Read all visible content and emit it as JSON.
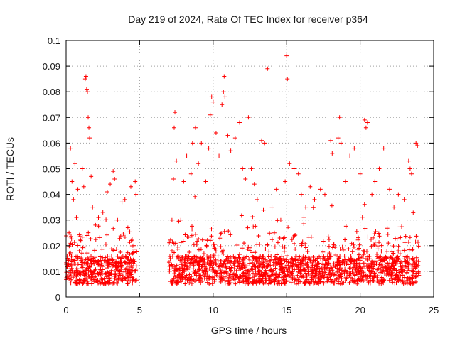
{
  "chart_data": {
    "type": "scatter",
    "title": "Day 219 of 2024, Rate Of TEC Index for receiver p364",
    "xlabel": "GPS time / hours",
    "ylabel": "ROTI / TECUs",
    "xlim": [
      0,
      25
    ],
    "ylim": [
      0,
      0.1
    ],
    "xticks": [
      0,
      5,
      10,
      15,
      20,
      25
    ],
    "yticks": [
      0,
      0.01,
      0.02,
      0.03,
      0.04,
      0.05,
      0.06,
      0.07,
      0.08,
      0.09,
      0.1
    ],
    "xtick_labels": [
      "0",
      "5",
      "10",
      "15",
      "20",
      "25"
    ],
    "ytick_labels": [
      "0",
      "0.01",
      "0.02",
      "0.03",
      "0.04",
      "0.05",
      "0.06",
      "0.07",
      "0.08",
      "0.09",
      "0.1"
    ],
    "grid": true,
    "marker": "+",
    "series_color": "#ff0000",
    "series": [
      {
        "name": "ROTI",
        "points": [
          [
            0.1,
            0.012
          ],
          [
            0.2,
            0.025
          ],
          [
            0.3,
            0.058
          ],
          [
            0.4,
            0.045
          ],
          [
            0.5,
            0.038
          ],
          [
            0.6,
            0.052
          ],
          [
            0.7,
            0.031
          ],
          [
            0.8,
            0.042
          ],
          [
            0.9,
            0.018
          ],
          [
            1.0,
            0.022
          ],
          [
            1.1,
            0.05
          ],
          [
            1.2,
            0.043
          ],
          [
            1.3,
            0.085
          ],
          [
            1.35,
            0.086
          ],
          [
            1.4,
            0.081
          ],
          [
            1.45,
            0.08
          ],
          [
            1.5,
            0.07
          ],
          [
            1.55,
            0.066
          ],
          [
            1.6,
            0.062
          ],
          [
            1.7,
            0.047
          ],
          [
            1.8,
            0.035
          ],
          [
            2.0,
            0.028
          ],
          [
            2.2,
            0.031
          ],
          [
            2.5,
            0.033
          ],
          [
            2.8,
            0.041
          ],
          [
            3.0,
            0.044
          ],
          [
            3.2,
            0.049
          ],
          [
            3.3,
            0.046
          ],
          [
            3.5,
            0.03
          ],
          [
            3.8,
            0.037
          ],
          [
            4.0,
            0.038
          ],
          [
            4.2,
            0.027
          ],
          [
            4.4,
            0.043
          ],
          [
            4.6,
            0.02
          ],
          [
            4.7,
            0.045
          ],
          [
            4.75,
            0.04
          ],
          [
            7.2,
            0.03
          ],
          [
            7.3,
            0.046
          ],
          [
            7.35,
            0.066
          ],
          [
            7.4,
            0.072
          ],
          [
            7.5,
            0.053
          ],
          [
            7.8,
            0.03
          ],
          [
            8.0,
            0.045
          ],
          [
            8.2,
            0.055
          ],
          [
            8.5,
            0.048
          ],
          [
            8.6,
            0.06
          ],
          [
            8.8,
            0.066
          ],
          [
            9.0,
            0.052
          ],
          [
            9.2,
            0.06
          ],
          [
            9.5,
            0.045
          ],
          [
            9.7,
            0.058
          ],
          [
            9.8,
            0.071
          ],
          [
            9.9,
            0.078
          ],
          [
            10.0,
            0.076
          ],
          [
            10.2,
            0.064
          ],
          [
            10.4,
            0.055
          ],
          [
            10.6,
            0.075
          ],
          [
            10.7,
            0.08
          ],
          [
            10.75,
            0.086
          ],
          [
            10.8,
            0.078
          ],
          [
            11.0,
            0.063
          ],
          [
            11.2,
            0.057
          ],
          [
            11.5,
            0.062
          ],
          [
            11.8,
            0.068
          ],
          [
            12.0,
            0.05
          ],
          [
            12.2,
            0.046
          ],
          [
            12.4,
            0.07
          ],
          [
            12.6,
            0.05
          ],
          [
            12.8,
            0.044
          ],
          [
            13.0,
            0.038
          ],
          [
            13.3,
            0.061
          ],
          [
            13.5,
            0.06
          ],
          [
            13.7,
            0.089
          ],
          [
            14.0,
            0.035
          ],
          [
            14.3,
            0.042
          ],
          [
            14.6,
            0.03
          ],
          [
            14.9,
            0.045
          ],
          [
            15.0,
            0.094
          ],
          [
            15.05,
            0.085
          ],
          [
            15.2,
            0.052
          ],
          [
            15.5,
            0.05
          ],
          [
            15.8,
            0.048
          ],
          [
            16.0,
            0.04
          ],
          [
            16.3,
            0.035
          ],
          [
            16.6,
            0.043
          ],
          [
            16.9,
            0.038
          ],
          [
            17.3,
            0.042
          ],
          [
            17.6,
            0.04
          ],
          [
            18.0,
            0.061
          ],
          [
            18.1,
            0.056
          ],
          [
            18.5,
            0.062
          ],
          [
            18.6,
            0.07
          ],
          [
            18.7,
            0.06
          ],
          [
            19.0,
            0.045
          ],
          [
            19.3,
            0.055
          ],
          [
            19.6,
            0.058
          ],
          [
            20.0,
            0.048
          ],
          [
            20.3,
            0.069
          ],
          [
            20.4,
            0.066
          ],
          [
            20.5,
            0.068
          ],
          [
            20.8,
            0.04
          ],
          [
            21.0,
            0.045
          ],
          [
            21.3,
            0.05
          ],
          [
            21.6,
            0.058
          ],
          [
            22.0,
            0.042
          ],
          [
            22.3,
            0.035
          ],
          [
            22.6,
            0.04
          ],
          [
            23.0,
            0.038
          ],
          [
            23.3,
            0.053
          ],
          [
            23.4,
            0.05
          ],
          [
            23.5,
            0.048
          ],
          [
            23.8,
            0.06
          ],
          [
            23.9,
            0.059
          ]
        ],
        "dense_band": {
          "segments": [
            [
              0.0,
              4.8
            ],
            [
              7.0,
              24.0
            ]
          ],
          "typical_range": [
            0.005,
            0.025
          ],
          "count": 2000
        }
      }
    ]
  }
}
